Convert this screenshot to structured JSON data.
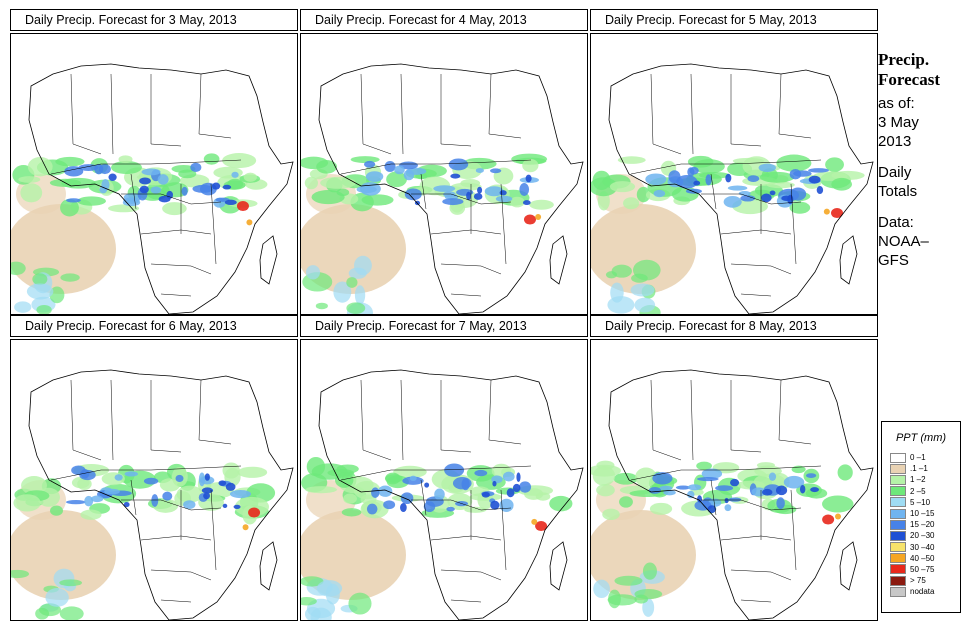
{
  "panels": [
    {
      "title": "Daily Precip. Forecast for  3 May, 2013"
    },
    {
      "title": "Daily Precip. Forecast for  4 May, 2013"
    },
    {
      "title": "Daily Precip. Forecast for  5 May, 2013"
    },
    {
      "title": "Daily Precip. Forecast for  6 May, 2013"
    },
    {
      "title": "Daily Precip. Forecast for  7 May, 2013"
    },
    {
      "title": "Daily Precip. Forecast for  8 May, 2013"
    }
  ],
  "sidebar": {
    "heading_line1": "Precip.",
    "heading_line2": "Forecast",
    "asof_label": "as of:",
    "date_line1": "3 May",
    "date_line2": "2013",
    "totals_line1": "Daily",
    "totals_line2": "Totals",
    "data_line1": "Data:",
    "data_line2": "NOAA–",
    "data_line3": "GFS"
  },
  "legend": {
    "title": "PPT (mm)",
    "items": [
      {
        "label": "0 –1",
        "color": "#ffffff"
      },
      {
        "label": ".1 –1",
        "color": "#e9d3b4"
      },
      {
        "label": "1 –2",
        "color": "#b5f3a8"
      },
      {
        "label": "2 –5",
        "color": "#6ee87a"
      },
      {
        "label": "5 –10",
        "color": "#9fdcf3"
      },
      {
        "label": "10 –15",
        "color": "#6fb4f0"
      },
      {
        "label": "15 –20",
        "color": "#4782e8"
      },
      {
        "label": "20 –30",
        "color": "#1f50d4"
      },
      {
        "label": "30 –40",
        "color": "#f7e36b"
      },
      {
        "label": "40 –50",
        "color": "#f5a623"
      },
      {
        "label": "50 –75",
        "color": "#e8281c"
      },
      {
        "label": "> 75",
        "color": "#8b1a10"
      },
      {
        "label": "nodata",
        "color": "#c8c8c8"
      }
    ]
  }
}
